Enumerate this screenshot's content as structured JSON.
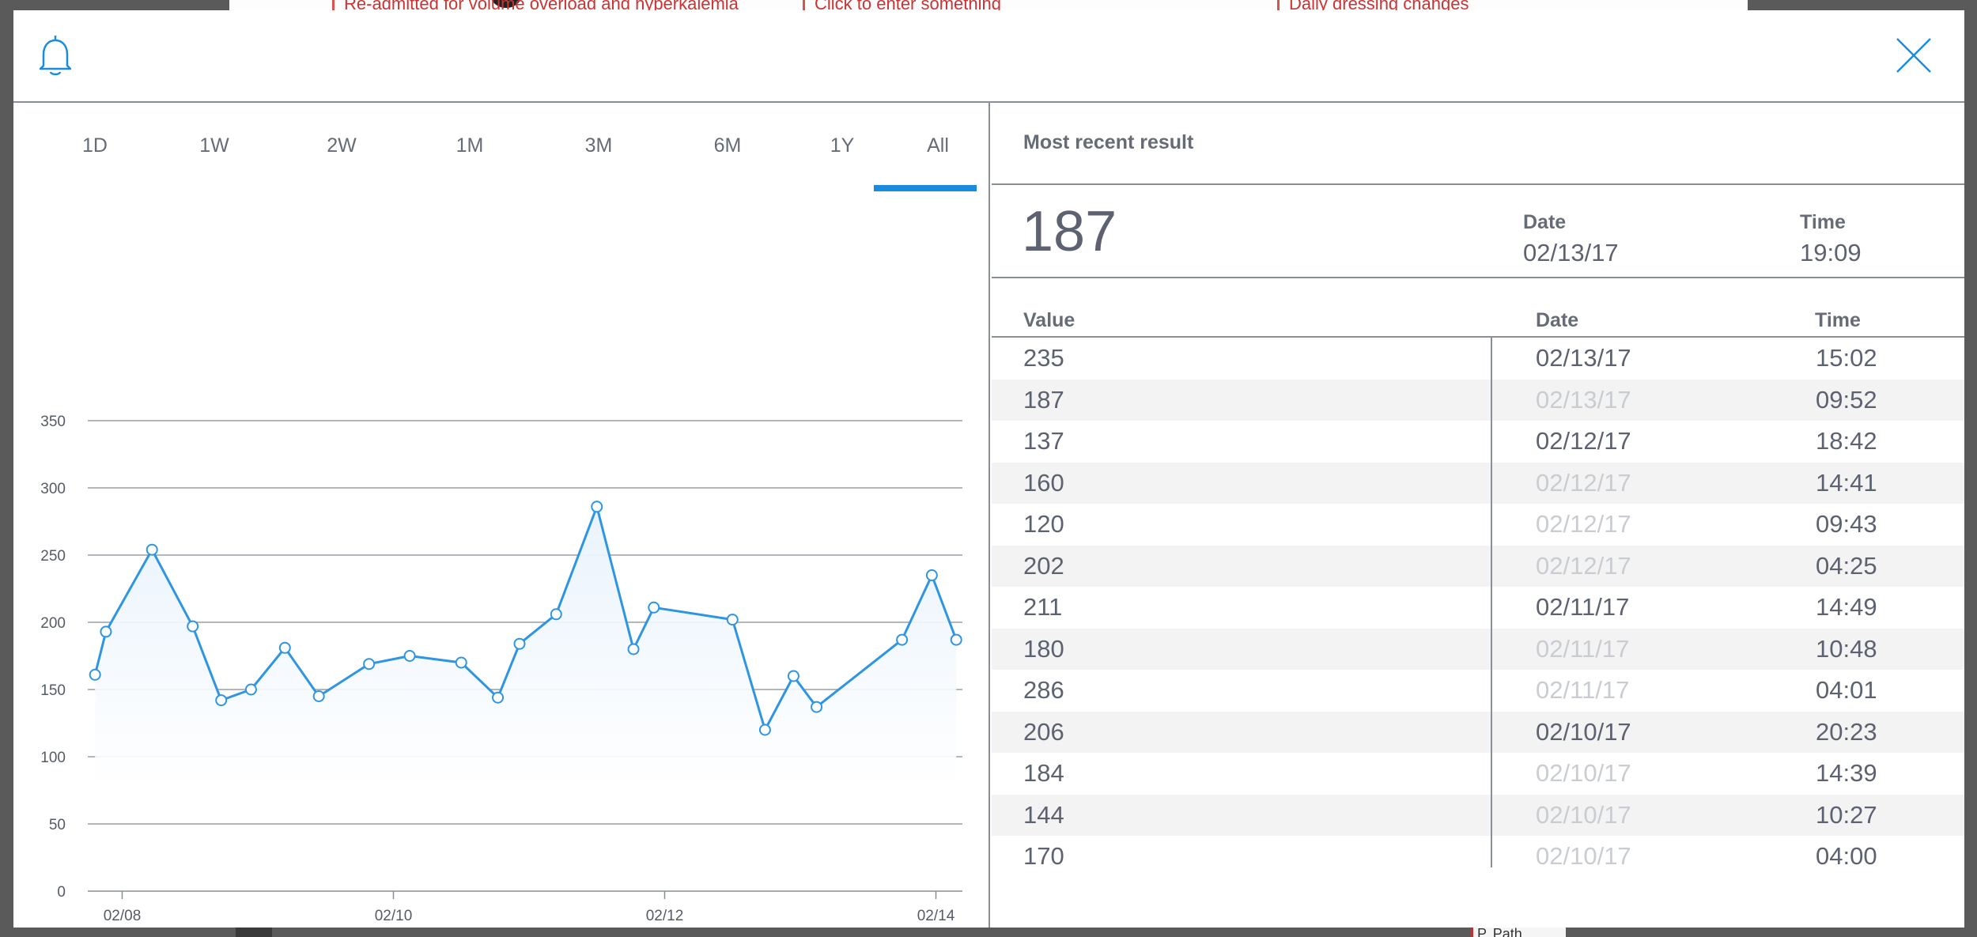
{
  "background": {
    "text_1": "Re-admitted for volume overload and hyperkalemia",
    "text_2": "Click to enter something",
    "text_3": "Daily dressing changes",
    "text_4": "P. Path"
  },
  "tabs": [
    {
      "label": "1D"
    },
    {
      "label": "1W"
    },
    {
      "label": "2W"
    },
    {
      "label": "1M"
    },
    {
      "label": "3M"
    },
    {
      "label": "6M"
    },
    {
      "label": "1Y"
    },
    {
      "label": "All",
      "active": true
    }
  ],
  "colors": {
    "accent": "#1a8ce0",
    "line": "#2e95e3",
    "fill": "#e8f2fc"
  },
  "icons": {
    "bell": "bell-icon",
    "close": "close-icon"
  },
  "chart_data": {
    "type": "line",
    "ylim": [
      0,
      350
    ],
    "yticks": [
      0,
      50,
      100,
      150,
      200,
      250,
      300,
      350
    ],
    "xticks": [
      {
        "label": "02/08",
        "x": 0
      },
      {
        "label": "02/10",
        "x": 2
      },
      {
        "label": "02/12",
        "x": 4
      },
      {
        "label": "02/14",
        "x": 6
      }
    ],
    "xlim": [
      -0.2,
      6.15
    ],
    "grid": true,
    "points": [
      {
        "x": -0.2,
        "y": 161
      },
      {
        "x": -0.12,
        "y": 193
      },
      {
        "x": 0.22,
        "y": 254
      },
      {
        "x": 0.52,
        "y": 197
      },
      {
        "x": 0.73,
        "y": 142
      },
      {
        "x": 0.95,
        "y": 150
      },
      {
        "x": 1.2,
        "y": 181
      },
      {
        "x": 1.45,
        "y": 145
      },
      {
        "x": 1.82,
        "y": 169
      },
      {
        "x": 2.12,
        "y": 175
      },
      {
        "x": 2.5,
        "y": 170
      },
      {
        "x": 2.77,
        "y": 144
      },
      {
        "x": 2.93,
        "y": 184
      },
      {
        "x": 3.2,
        "y": 206
      },
      {
        "x": 3.5,
        "y": 286
      },
      {
        "x": 3.77,
        "y": 180
      },
      {
        "x": 3.92,
        "y": 211
      },
      {
        "x": 4.5,
        "y": 202
      },
      {
        "x": 4.74,
        "y": 120
      },
      {
        "x": 4.95,
        "y": 160
      },
      {
        "x": 5.12,
        "y": 137
      },
      {
        "x": 5.75,
        "y": 187
      },
      {
        "x": 5.97,
        "y": 235
      },
      {
        "x": 6.15,
        "y": 187
      }
    ]
  },
  "recent": {
    "title": "Most recent result",
    "value": "187",
    "date_label": "Date",
    "date": "02/13/17",
    "time_label": "Time",
    "time": "19:09"
  },
  "table": {
    "headers": {
      "value": "Value",
      "date": "Date",
      "time": "Time"
    },
    "rows": [
      {
        "value": "235",
        "date": "02/13/17",
        "time": "15:02",
        "faded": false
      },
      {
        "value": "187",
        "date": "02/13/17",
        "time": "09:52",
        "faded": true
      },
      {
        "value": "137",
        "date": "02/12/17",
        "time": "18:42",
        "faded": false
      },
      {
        "value": "160",
        "date": "02/12/17",
        "time": "14:41",
        "faded": true
      },
      {
        "value": "120",
        "date": "02/12/17",
        "time": "09:43",
        "faded": true
      },
      {
        "value": "202",
        "date": "02/12/17",
        "time": "04:25",
        "faded": true
      },
      {
        "value": "211",
        "date": "02/11/17",
        "time": "14:49",
        "faded": false
      },
      {
        "value": "180",
        "date": "02/11/17",
        "time": "10:48",
        "faded": true
      },
      {
        "value": "286",
        "date": "02/11/17",
        "time": "04:01",
        "faded": true
      },
      {
        "value": "206",
        "date": "02/10/17",
        "time": "20:23",
        "faded": false
      },
      {
        "value": "184",
        "date": "02/10/17",
        "time": "14:39",
        "faded": true
      },
      {
        "value": "144",
        "date": "02/10/17",
        "time": "10:27",
        "faded": true
      },
      {
        "value": "170",
        "date": "02/10/17",
        "time": "04:00",
        "faded": true
      }
    ]
  }
}
